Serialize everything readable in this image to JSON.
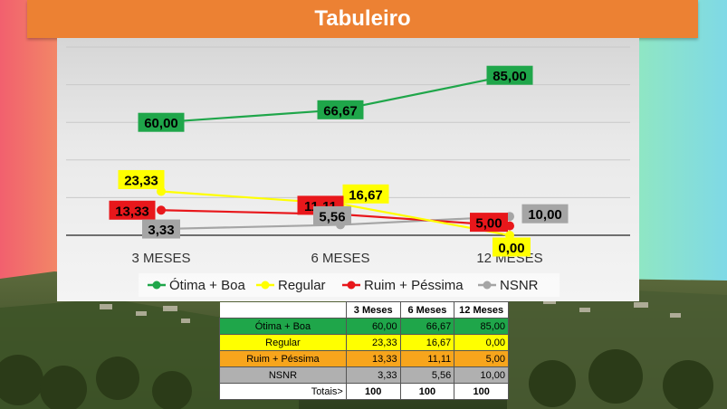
{
  "title": "Tabuleiro",
  "chart_data": {
    "type": "line",
    "categories": [
      "3 MESES",
      "6 MESES",
      "12 MESES"
    ],
    "ylim": [
      0,
      100
    ],
    "legend_position": "bottom",
    "series": [
      {
        "name": "Ótima + Boa",
        "values": [
          60.0,
          66.67,
          85.0
        ],
        "labels": [
          "60,00",
          "66,67",
          "85,00"
        ],
        "color": "#1fa64a",
        "label_bg": "#1fa64a",
        "label_fg": "#000000"
      },
      {
        "name": "Regular",
        "values": [
          23.33,
          16.67,
          0.0
        ],
        "labels": [
          "23,33",
          "16,67",
          "0,00"
        ],
        "color": "#ffff00",
        "label_bg": "#ffff00",
        "label_fg": "#000000"
      },
      {
        "name": "Ruim + Péssima",
        "values": [
          13.33,
          11.11,
          5.0
        ],
        "labels": [
          "13,33",
          "11,11",
          "5,00"
        ],
        "color": "#e8171b",
        "label_bg": "#e8171b",
        "label_fg": "#000000"
      },
      {
        "name": "NSNR",
        "values": [
          3.33,
          5.56,
          10.0
        ],
        "labels": [
          "3,33",
          "5,56",
          "10,00"
        ],
        "color": "#a5a5a5",
        "label_bg": "#a5a5a5",
        "label_fg": "#000000"
      }
    ]
  },
  "table": {
    "headers": [
      "3 Meses",
      "6 Meses",
      "12 Meses"
    ],
    "rows": [
      {
        "label": "Ótima + Boa",
        "values": [
          "60,00",
          "66,67",
          "85,00"
        ],
        "color": "#1fa64a"
      },
      {
        "label": "Regular",
        "values": [
          "23,33",
          "16,67",
          "0,00"
        ],
        "color": "#ffff00"
      },
      {
        "label": "Ruim + Péssima",
        "values": [
          "13,33",
          "11,11",
          "5,00"
        ],
        "color": "#f7a51c"
      },
      {
        "label": "NSNR",
        "values": [
          "3,33",
          "5,56",
          "10,00"
        ],
        "color": "#b0b0b0"
      }
    ],
    "totals_label": "Totais>",
    "totals": [
      "100",
      "100",
      "100"
    ]
  }
}
